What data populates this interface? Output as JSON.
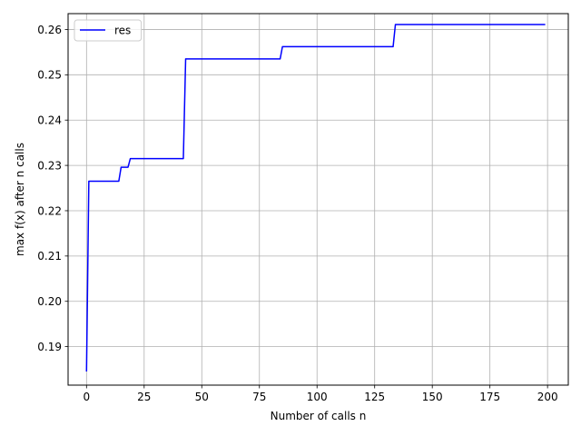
{
  "chart_data": {
    "type": "line",
    "title": "",
    "xlabel": "Number of calls n",
    "ylabel": "max f(x) after n calls",
    "xlim": [
      -8,
      209
    ],
    "ylim": [
      0.1815,
      0.2635
    ],
    "xticks": [
      0,
      25,
      50,
      75,
      100,
      125,
      150,
      175,
      200
    ],
    "yticks": [
      0.19,
      0.2,
      0.21,
      0.22,
      0.23,
      0.24,
      0.25,
      0.26
    ],
    "ytick_labels": [
      "0.19",
      "0.20",
      "0.21",
      "0.22",
      "0.23",
      "0.24",
      "0.25",
      "0.26"
    ],
    "grid": true,
    "legend_position": "top-left",
    "series": [
      {
        "name": "res",
        "color": "#0000ff",
        "x": [
          0,
          1,
          14,
          15,
          18,
          19,
          42,
          43,
          84,
          85,
          133,
          134,
          199
        ],
        "y": [
          0.1845,
          0.2265,
          0.2265,
          0.2296,
          0.2296,
          0.2315,
          0.2315,
          0.2535,
          0.2535,
          0.2562,
          0.2562,
          0.2611,
          0.2611
        ]
      }
    ]
  }
}
